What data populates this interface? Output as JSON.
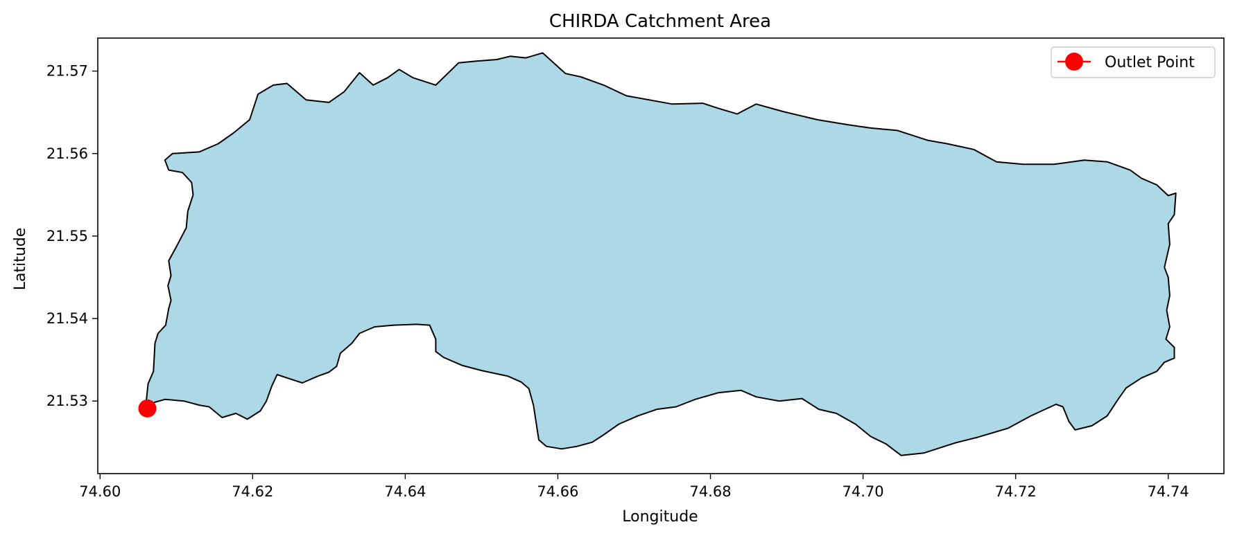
{
  "chart_data": {
    "type": "map",
    "title": "CHIRDA Catchment Area",
    "xlabel": "Longitude",
    "ylabel": "Latitude",
    "xlim": [
      74.5997,
      74.7473
    ],
    "ylim": [
      21.5212,
      21.574
    ],
    "xticks": [
      74.6,
      74.62,
      74.64,
      74.66,
      74.68,
      74.7,
      74.72,
      74.74
    ],
    "xtick_labels": [
      "74.60",
      "74.62",
      "74.64",
      "74.66",
      "74.68",
      "74.70",
      "74.72",
      "74.74"
    ],
    "yticks": [
      21.53,
      21.54,
      21.55,
      21.56,
      21.57
    ],
    "ytick_labels": [
      "21.53",
      "21.54",
      "21.55",
      "21.56",
      "21.57"
    ],
    "grid": false,
    "legend_position": "upper-right",
    "legend": [
      {
        "label": "Outlet Point",
        "color": "#ff0000",
        "marker": "circle",
        "line": true
      }
    ],
    "catchment": {
      "fill": "#add8e6",
      "edge": "#000000",
      "boundary": [
        [
          74.606,
          21.5295
        ],
        [
          74.6063,
          21.5321
        ],
        [
          74.607,
          21.5336
        ],
        [
          74.6072,
          21.537
        ],
        [
          74.6076,
          21.5382
        ],
        [
          74.6086,
          21.5392
        ],
        [
          74.609,
          21.5412
        ],
        [
          74.6093,
          21.5422
        ],
        [
          74.6089,
          21.544
        ],
        [
          74.6093,
          21.5452
        ],
        [
          74.609,
          21.547
        ],
        [
          74.61,
          21.5487
        ],
        [
          74.6113,
          21.551
        ],
        [
          74.6115,
          21.553
        ],
        [
          74.6122,
          21.555
        ],
        [
          74.612,
          21.5565
        ],
        [
          74.6108,
          21.5577
        ],
        [
          74.609,
          21.558
        ],
        [
          74.6085,
          21.5592
        ],
        [
          74.6095,
          21.56
        ],
        [
          74.613,
          21.5602
        ],
        [
          74.6155,
          21.5612
        ],
        [
          74.6175,
          21.5625
        ],
        [
          74.6196,
          21.5641
        ],
        [
          74.6207,
          21.5672
        ],
        [
          74.6227,
          21.5683
        ],
        [
          74.6245,
          21.5685
        ],
        [
          74.627,
          21.5665
        ],
        [
          74.63,
          21.5662
        ],
        [
          74.632,
          21.5675
        ],
        [
          74.634,
          21.5698
        ],
        [
          74.6358,
          21.5683
        ],
        [
          74.6377,
          21.5692
        ],
        [
          74.6392,
          21.5702
        ],
        [
          74.641,
          21.5692
        ],
        [
          74.644,
          21.5683
        ],
        [
          74.647,
          21.571
        ],
        [
          74.6492,
          21.5712
        ],
        [
          74.652,
          21.5714
        ],
        [
          74.6538,
          21.5718
        ],
        [
          74.6558,
          21.5716
        ],
        [
          74.658,
          21.5722
        ],
        [
          74.661,
          21.5697
        ],
        [
          74.663,
          21.5693
        ],
        [
          74.666,
          21.5683
        ],
        [
          74.669,
          21.567
        ],
        [
          74.672,
          21.5665
        ],
        [
          74.675,
          21.566
        ],
        [
          74.679,
          21.5661
        ],
        [
          74.681,
          21.5655
        ],
        [
          74.6835,
          21.5648
        ],
        [
          74.686,
          21.566
        ],
        [
          74.6895,
          21.5651
        ],
        [
          74.694,
          21.5641
        ],
        [
          74.698,
          21.5635
        ],
        [
          74.701,
          21.5631
        ],
        [
          74.7045,
          21.5628
        ],
        [
          74.7085,
          21.5616
        ],
        [
          74.711,
          21.5612
        ],
        [
          74.7145,
          21.5605
        ],
        [
          74.7175,
          21.559
        ],
        [
          74.721,
          21.5587
        ],
        [
          74.725,
          21.5587
        ],
        [
          74.729,
          21.5592
        ],
        [
          74.732,
          21.559
        ],
        [
          74.735,
          21.558
        ],
        [
          74.7365,
          21.557
        ],
        [
          74.7385,
          21.5562
        ],
        [
          74.74,
          21.5549
        ],
        [
          74.741,
          21.5552
        ],
        [
          74.7408,
          21.5526
        ],
        [
          74.74,
          21.5515
        ],
        [
          74.7402,
          21.549
        ],
        [
          74.7395,
          21.5462
        ],
        [
          74.74,
          21.545
        ],
        [
          74.7402,
          21.5428
        ],
        [
          74.7398,
          21.541
        ],
        [
          74.7402,
          21.539
        ],
        [
          74.7397,
          21.5375
        ],
        [
          74.7408,
          21.5365
        ],
        [
          74.7408,
          21.5352
        ],
        [
          74.7395,
          21.5347
        ],
        [
          74.7385,
          21.5336
        ],
        [
          74.7365,
          21.5328
        ],
        [
          74.7345,
          21.5316
        ],
        [
          74.7335,
          21.5303
        ],
        [
          74.732,
          21.5282
        ],
        [
          74.73,
          21.527
        ],
        [
          74.7278,
          21.5265
        ],
        [
          74.727,
          21.5275
        ],
        [
          74.7262,
          21.5293
        ],
        [
          74.7253,
          21.5296
        ],
        [
          74.722,
          21.5282
        ],
        [
          74.719,
          21.5267
        ],
        [
          74.715,
          21.5256
        ],
        [
          74.712,
          21.5249
        ],
        [
          74.71,
          21.5243
        ],
        [
          74.708,
          21.5237
        ],
        [
          74.705,
          21.5234
        ],
        [
          74.703,
          21.5248
        ],
        [
          74.701,
          21.5257
        ],
        [
          74.699,
          21.5272
        ],
        [
          74.6965,
          21.5285
        ],
        [
          74.6942,
          21.529
        ],
        [
          74.692,
          21.5303
        ],
        [
          74.689,
          21.53
        ],
        [
          74.686,
          21.5305
        ],
        [
          74.684,
          21.5313
        ],
        [
          74.681,
          21.531
        ],
        [
          74.678,
          21.5302
        ],
        [
          74.6755,
          21.5293
        ],
        [
          74.673,
          21.529
        ],
        [
          74.6705,
          21.5282
        ],
        [
          74.668,
          21.5272
        ],
        [
          74.666,
          21.5259
        ],
        [
          74.6645,
          21.525
        ],
        [
          74.6625,
          21.5245
        ],
        [
          74.6605,
          21.5242
        ],
        [
          74.6585,
          21.5245
        ],
        [
          74.6575,
          21.5253
        ],
        [
          74.6568,
          21.5295
        ],
        [
          74.6562,
          21.5315
        ],
        [
          74.6552,
          21.5323
        ],
        [
          74.6535,
          21.533
        ],
        [
          74.65,
          21.5337
        ],
        [
          74.6475,
          21.5343
        ],
        [
          74.645,
          21.5353
        ],
        [
          74.644,
          21.536
        ],
        [
          74.644,
          21.5375
        ],
        [
          74.6432,
          21.5392
        ],
        [
          74.6415,
          21.5393
        ],
        [
          74.6385,
          21.5392
        ],
        [
          74.636,
          21.539
        ],
        [
          74.634,
          21.5382
        ],
        [
          74.633,
          21.537
        ],
        [
          74.6315,
          21.5358
        ],
        [
          74.631,
          21.5342
        ],
        [
          74.63,
          21.5335
        ],
        [
          74.6285,
          21.533
        ],
        [
          74.6265,
          21.5322
        ],
        [
          74.6245,
          21.5328
        ],
        [
          74.6232,
          21.5332
        ],
        [
          74.6225,
          21.5318
        ],
        [
          74.6218,
          21.53
        ],
        [
          74.621,
          21.5288
        ],
        [
          74.6193,
          21.5278
        ],
        [
          74.6178,
          21.5285
        ],
        [
          74.616,
          21.528
        ],
        [
          74.6143,
          21.5293
        ],
        [
          74.613,
          21.5295
        ],
        [
          74.611,
          21.53
        ],
        [
          74.6085,
          21.5302
        ],
        [
          74.607,
          21.5298
        ],
        [
          74.606,
          21.5295
        ]
      ]
    },
    "outlet_point": {
      "label": "Outlet Point",
      "lon": 74.6062,
      "lat": 21.5291,
      "color": "#ff0000"
    }
  }
}
